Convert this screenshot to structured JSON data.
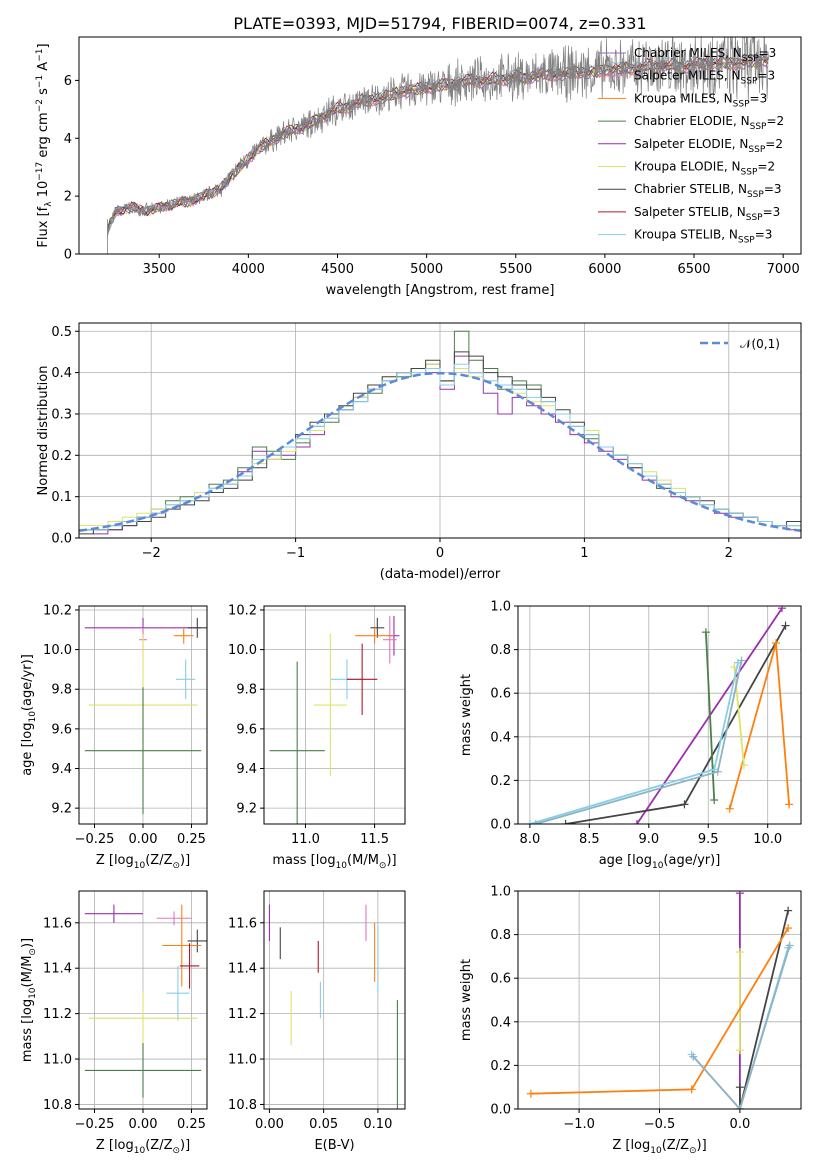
{
  "figure": {
    "title": "PLATE=0393, MJD=51794, FIBERID=0074, z=0.331"
  },
  "chart_data": [
    {
      "id": "spectrum",
      "type": "line",
      "title": "PLATE=0393, MJD=51794, FIBERID=0074, z=0.331",
      "xlabel": "wavelength [Angstrom, rest frame]",
      "ylabel": "Flux [f_λ 10^-17 erg cm^-2 s^-1 A^-1]",
      "xlim": [
        3050,
        7100
      ],
      "ylim": [
        0,
        7.5
      ],
      "xticks": [
        3500,
        4000,
        4500,
        5000,
        5500,
        6000,
        6500,
        7000
      ],
      "yticks": [
        0,
        2,
        4,
        6
      ],
      "grid": false,
      "legend_position": "top-right",
      "data_color": "#808080",
      "data_start_x": 3210,
      "data_end_x": 6920,
      "data_points": [
        [
          3210,
          0.8
        ],
        [
          3260,
          1.5
        ],
        [
          3350,
          1.6
        ],
        [
          3450,
          1.5
        ],
        [
          3550,
          1.7
        ],
        [
          3650,
          1.8
        ],
        [
          3750,
          2.0
        ],
        [
          3850,
          2.3
        ],
        [
          3950,
          3.0
        ],
        [
          4050,
          3.6
        ],
        [
          4150,
          4.0
        ],
        [
          4250,
          4.3
        ],
        [
          4350,
          4.5
        ],
        [
          4450,
          4.9
        ],
        [
          4550,
          5.1
        ],
        [
          4650,
          5.3
        ],
        [
          4750,
          5.4
        ],
        [
          4850,
          5.6
        ],
        [
          4950,
          5.7
        ],
        [
          5050,
          5.8
        ],
        [
          5150,
          5.9
        ],
        [
          5250,
          6.0
        ],
        [
          5350,
          6.0
        ],
        [
          5450,
          6.1
        ],
        [
          5550,
          6.1
        ],
        [
          5650,
          6.2
        ],
        [
          5750,
          6.2
        ],
        [
          5850,
          6.3
        ],
        [
          5950,
          6.3
        ],
        [
          6050,
          6.4
        ],
        [
          6150,
          6.4
        ],
        [
          6250,
          6.5
        ],
        [
          6350,
          6.5
        ],
        [
          6450,
          6.5
        ],
        [
          6550,
          6.6
        ],
        [
          6650,
          6.6
        ],
        [
          6750,
          6.6
        ],
        [
          6850,
          6.7
        ],
        [
          6920,
          6.7
        ]
      ],
      "models": [
        {
          "name": "Chabrier MILES, N_SSP=3",
          "color": "#9467bd"
        },
        {
          "name": "Salpeter MILES, N_SSP=3",
          "color": "#e377c2"
        },
        {
          "name": "Kroupa MILES, N_SSP=3",
          "color": "#ff7f0e"
        },
        {
          "name": "Chabrier ELODIE, N_SSP=2",
          "color": "#4a7f4a"
        },
        {
          "name": "Salpeter ELODIE, N_SSP=2",
          "color": "#9b2fae"
        },
        {
          "name": "Kroupa ELODIE, N_SSP=2",
          "color": "#dde26a"
        },
        {
          "name": "Chabrier STELIB, N_SSP=3",
          "color": "#444444"
        },
        {
          "name": "Salpeter STELIB, N_SSP=3",
          "color": "#b2182b"
        },
        {
          "name": "Kroupa STELIB, N_SSP=3",
          "color": "#87ceeb"
        }
      ]
    },
    {
      "id": "residuals",
      "type": "line",
      "xlabel": "(data-model)/error",
      "ylabel": "Normed distribution",
      "xlim": [
        -2.5,
        2.5
      ],
      "ylim": [
        0,
        0.52
      ],
      "xticks": [
        -2,
        -1,
        0,
        1,
        2
      ],
      "yticks": [
        0.0,
        0.1,
        0.2,
        0.3,
        0.4,
        0.5
      ],
      "grid": true,
      "legend_position": "top-right",
      "reference": {
        "name": "𝒩(0,1)",
        "color": "#5b8ad6",
        "mean": 0,
        "sigma": 1
      },
      "hist_bins": {
        "start": -2.5,
        "width": 0.1,
        "count": 50
      },
      "histograms": [
        {
          "color": "#9b2fae",
          "values": [
            0.02,
            0.01,
            0.02,
            0.03,
            0.05,
            0.06,
            0.08,
            0.09,
            0.1,
            0.12,
            0.13,
            0.16,
            0.21,
            0.19,
            0.2,
            0.22,
            0.25,
            0.29,
            0.31,
            0.34,
            0.36,
            0.38,
            0.4,
            0.41,
            0.4,
            0.36,
            0.44,
            0.4,
            0.35,
            0.3,
            0.34,
            0.32,
            0.3,
            0.28,
            0.25,
            0.23,
            0.21,
            0.19,
            0.17,
            0.14,
            0.12,
            0.1,
            0.09,
            0.08,
            0.06,
            0.05,
            0.05,
            0.04,
            0.03,
            0.02
          ]
        },
        {
          "color": "#4a7f4a",
          "values": [
            0.02,
            0.02,
            0.03,
            0.04,
            0.05,
            0.07,
            0.09,
            0.1,
            0.11,
            0.13,
            0.14,
            0.17,
            0.22,
            0.21,
            0.19,
            0.23,
            0.27,
            0.28,
            0.31,
            0.33,
            0.35,
            0.38,
            0.39,
            0.41,
            0.42,
            0.38,
            0.5,
            0.43,
            0.41,
            0.36,
            0.38,
            0.37,
            0.33,
            0.3,
            0.27,
            0.24,
            0.22,
            0.2,
            0.18,
            0.15,
            0.12,
            0.11,
            0.1,
            0.08,
            0.07,
            0.06,
            0.05,
            0.04,
            0.03,
            0.03
          ]
        },
        {
          "color": "#dde26a",
          "values": [
            0.03,
            0.03,
            0.04,
            0.05,
            0.06,
            0.07,
            0.08,
            0.09,
            0.11,
            0.12,
            0.13,
            0.14,
            0.18,
            0.19,
            0.21,
            0.24,
            0.26,
            0.29,
            0.32,
            0.34,
            0.37,
            0.39,
            0.4,
            0.41,
            0.42,
            0.37,
            0.41,
            0.39,
            0.38,
            0.37,
            0.35,
            0.33,
            0.32,
            0.3,
            0.28,
            0.26,
            0.22,
            0.2,
            0.18,
            0.16,
            0.14,
            0.12,
            0.1,
            0.08,
            0.07,
            0.06,
            0.05,
            0.04,
            0.03,
            0.03
          ]
        },
        {
          "color": "#444444",
          "values": [
            0.01,
            0.02,
            0.02,
            0.03,
            0.04,
            0.05,
            0.07,
            0.08,
            0.09,
            0.11,
            0.12,
            0.14,
            0.17,
            0.2,
            0.22,
            0.25,
            0.28,
            0.3,
            0.32,
            0.35,
            0.37,
            0.39,
            0.4,
            0.41,
            0.43,
            0.38,
            0.45,
            0.44,
            0.4,
            0.39,
            0.37,
            0.36,
            0.34,
            0.31,
            0.28,
            0.25,
            0.22,
            0.2,
            0.17,
            0.15,
            0.13,
            0.11,
            0.1,
            0.09,
            0.07,
            0.06,
            0.05,
            0.04,
            0.03,
            0.04
          ]
        },
        {
          "color": "#87ceeb",
          "values": [
            0.02,
            0.02,
            0.03,
            0.04,
            0.05,
            0.06,
            0.08,
            0.09,
            0.1,
            0.12,
            0.13,
            0.15,
            0.19,
            0.2,
            0.22,
            0.24,
            0.27,
            0.29,
            0.31,
            0.33,
            0.36,
            0.38,
            0.4,
            0.4,
            0.41,
            0.37,
            0.42,
            0.4,
            0.38,
            0.37,
            0.36,
            0.34,
            0.33,
            0.3,
            0.27,
            0.25,
            0.22,
            0.2,
            0.18,
            0.15,
            0.13,
            0.11,
            0.1,
            0.08,
            0.07,
            0.06,
            0.05,
            0.04,
            0.03,
            0.03
          ]
        }
      ]
    },
    {
      "id": "age-vs-Z",
      "type": "scatter",
      "xlabel": "Z [log10(Z/Z⊙)]",
      "ylabel": "age  [log10(age/yr)]",
      "xlim": [
        -0.33,
        0.33
      ],
      "ylim": [
        9.12,
        10.22
      ],
      "xticks": [
        -0.25,
        0.0,
        0.25
      ],
      "yticks": [
        9.2,
        9.4,
        9.6,
        9.8,
        10.0,
        10.2
      ],
      "grid": true,
      "points": [
        {
          "x": 0.0,
          "y": 10.11,
          "xerr": 0.3,
          "yerr": 0.05,
          "color": "#9b2fae"
        },
        {
          "x": 0.28,
          "y": 10.11,
          "xerr": 0.05,
          "yerr": 0.05,
          "color": "#444444"
        },
        {
          "x": 0.21,
          "y": 10.07,
          "xerr": 0.05,
          "yerr": 0.04,
          "color": "#ff7f0e"
        },
        {
          "x": 0.0,
          "y": 10.05,
          "xerr": 0.02,
          "yerr": 0.06,
          "color": "#e377c2"
        },
        {
          "x": 0.22,
          "y": 9.85,
          "xerr": 0.05,
          "yerr": 0.1,
          "color": "#87ceeb"
        },
        {
          "x": 0.0,
          "y": 9.72,
          "xerr": 0.28,
          "yerr": 0.36,
          "color": "#dde26a"
        },
        {
          "x": 0.0,
          "y": 9.49,
          "xerr": 0.3,
          "yerr": 0.32,
          "color": "#4a7f4a"
        }
      ]
    },
    {
      "id": "age-vs-mass",
      "type": "scatter",
      "xlabel": "mass [log10(M/M⊙)]",
      "ylabel": "",
      "xlim": [
        10.7,
        11.72
      ],
      "ylim": [
        9.12,
        10.22
      ],
      "xticks": [
        11.0,
        11.5
      ],
      "yticks": [
        9.2,
        9.4,
        9.6,
        9.8,
        10.0,
        10.2
      ],
      "grid": true,
      "points": [
        {
          "x": 11.64,
          "y": 10.07,
          "xerr": 0.04,
          "yerr": 0.1,
          "color": "#9b2fae"
        },
        {
          "x": 11.52,
          "y": 10.11,
          "xerr": 0.05,
          "yerr": 0.05,
          "color": "#444444"
        },
        {
          "x": 11.5,
          "y": 10.07,
          "xerr": 0.14,
          "yerr": 0.04,
          "color": "#ff7f0e"
        },
        {
          "x": 11.61,
          "y": 10.05,
          "xerr": 0.05,
          "yerr": 0.12,
          "color": "#e377c2"
        },
        {
          "x": 11.3,
          "y": 9.85,
          "xerr": 0.12,
          "yerr": 0.1,
          "color": "#87ceeb"
        },
        {
          "x": 11.41,
          "y": 9.85,
          "xerr": 0.11,
          "yerr": 0.18,
          "color": "#b2182b"
        },
        {
          "x": 11.18,
          "y": 9.72,
          "xerr": 0.12,
          "yerr": 0.36,
          "color": "#dde26a"
        },
        {
          "x": 10.94,
          "y": 9.49,
          "xerr": 0.2,
          "yerr": 0.45,
          "color": "#4a7f4a"
        }
      ]
    },
    {
      "id": "weight-vs-age",
      "type": "line",
      "xlabel": "age  [log10(age/yr)]",
      "ylabel": "mass weight",
      "xlim": [
        7.9,
        10.28
      ],
      "ylim": [
        0,
        1.0
      ],
      "xticks": [
        8.0,
        8.5,
        9.0,
        9.5,
        10.0
      ],
      "yticks": [
        0.0,
        0.2,
        0.4,
        0.6,
        0.8,
        1.0
      ],
      "grid": true,
      "series": [
        {
          "color": "#9b2fae",
          "x": [
            8.9,
            10.12
          ],
          "y": [
            0.0,
            0.99
          ]
        },
        {
          "color": "#444444",
          "x": [
            8.3,
            9.3,
            10.15
          ],
          "y": [
            0.0,
            0.09,
            0.91
          ]
        },
        {
          "color": "#ff7f0e",
          "x": [
            9.68,
            10.07,
            10.18
          ],
          "y": [
            0.07,
            0.83,
            0.09
          ]
        },
        {
          "color": "#4a7f4a",
          "x": [
            9.48,
            9.55
          ],
          "y": [
            0.88,
            0.11
          ]
        },
        {
          "color": "#dde26a",
          "x": [
            9.72,
            9.8
          ],
          "y": [
            0.72,
            0.27
          ]
        },
        {
          "color": "#87ceeb",
          "x": [
            8.0,
            9.55,
            9.75
          ],
          "y": [
            0.0,
            0.25,
            0.74
          ]
        },
        {
          "color": "#8fb3c0",
          "x": [
            8.05,
            9.58,
            9.78
          ],
          "y": [
            0.0,
            0.24,
            0.75
          ]
        }
      ]
    },
    {
      "id": "mass-vs-Z",
      "type": "scatter",
      "xlabel": "Z [log10(Z/Z⊙)]",
      "ylabel": "mass [log10(M/M⊙)]",
      "xlim": [
        -0.33,
        0.33
      ],
      "ylim": [
        10.78,
        11.74
      ],
      "xticks": [
        -0.25,
        0.0,
        0.25
      ],
      "yticks": [
        10.8,
        11.0,
        11.2,
        11.4,
        11.6
      ],
      "grid": true,
      "points": [
        {
          "x": -0.15,
          "y": 11.64,
          "xerr": 0.15,
          "yerr": 0.04,
          "color": "#9b2fae"
        },
        {
          "x": 0.16,
          "y": 11.62,
          "xerr": 0.09,
          "yerr": 0.03,
          "color": "#e377c2"
        },
        {
          "x": 0.28,
          "y": 11.52,
          "xerr": 0.05,
          "yerr": 0.05,
          "color": "#444444"
        },
        {
          "x": 0.2,
          "y": 11.5,
          "xerr": 0.1,
          "yerr": 0.18,
          "color": "#ff7f0e"
        },
        {
          "x": 0.24,
          "y": 11.41,
          "xerr": 0.05,
          "yerr": 0.1,
          "color": "#b2182b"
        },
        {
          "x": 0.18,
          "y": 11.29,
          "xerr": 0.06,
          "yerr": 0.12,
          "color": "#87ceeb"
        },
        {
          "x": 0.0,
          "y": 11.18,
          "xerr": 0.28,
          "yerr": 0.12,
          "color": "#dde26a"
        },
        {
          "x": 0.0,
          "y": 10.95,
          "xerr": 0.3,
          "yerr": 0.12,
          "color": "#4a7f4a"
        }
      ]
    },
    {
      "id": "mass-vs-ebv",
      "type": "scatter",
      "xlabel": "E(B-V)",
      "ylabel": "",
      "xlim": [
        -0.005,
        0.125
      ],
      "ylim": [
        10.78,
        11.74
      ],
      "xticks": [
        0.0,
        0.05,
        0.1
      ],
      "yticks": [
        10.8,
        11.0,
        11.2,
        11.4,
        11.6
      ],
      "grid": true,
      "points": [
        {
          "x": 0.0,
          "y": 11.6,
          "xerr": 0,
          "yerr": 0.08,
          "color": "#9b2fae"
        },
        {
          "x": 0.01,
          "y": 11.51,
          "xerr": 0,
          "yerr": 0.07,
          "color": "#444444"
        },
        {
          "x": 0.02,
          "y": 11.18,
          "xerr": 0,
          "yerr": 0.12,
          "color": "#dde26a"
        },
        {
          "x": 0.045,
          "y": 11.45,
          "xerr": 0,
          "yerr": 0.07,
          "color": "#b2182b"
        },
        {
          "x": 0.047,
          "y": 11.26,
          "xerr": 0,
          "yerr": 0.08,
          "color": "#87ceeb"
        },
        {
          "x": 0.089,
          "y": 11.6,
          "xerr": 0,
          "yerr": 0.08,
          "color": "#e377c2"
        },
        {
          "x": 0.097,
          "y": 11.47,
          "xerr": 0,
          "yerr": 0.13,
          "color": "#ff7f0e"
        },
        {
          "x": 0.1,
          "y": 11.44,
          "xerr": 0,
          "yerr": 0.15,
          "color": "#87ceeb"
        },
        {
          "x": 0.118,
          "y": 11.02,
          "xerr": 0,
          "yerr": 0.24,
          "color": "#4a7f4a"
        }
      ]
    },
    {
      "id": "weight-vs-Z",
      "type": "line",
      "xlabel": "Z [log10(Z/Z⊙)]",
      "ylabel": "mass weight",
      "xlim": [
        -1.38,
        0.38
      ],
      "ylim": [
        0,
        1.0
      ],
      "xticks": [
        -1.0,
        -0.5,
        0.0
      ],
      "yticks": [
        0.0,
        0.2,
        0.4,
        0.6,
        0.8,
        1.0
      ],
      "grid": true,
      "series": [
        {
          "color": "#9b2fae",
          "x": [
            0.0,
            0.0
          ],
          "y": [
            0.0,
            0.99
          ]
        },
        {
          "color": "#dde26a",
          "x": [
            0.0,
            0.0
          ],
          "y": [
            0.27,
            0.72
          ]
        },
        {
          "color": "#444444",
          "x": [
            0.0,
            0.0,
            0.3
          ],
          "y": [
            0.1,
            0.0,
            0.91
          ]
        },
        {
          "color": "#ff7f0e",
          "x": [
            -1.3,
            -0.3,
            0.3
          ],
          "y": [
            0.07,
            0.09,
            0.83
          ]
        },
        {
          "color": "#87ceeb",
          "x": [
            -0.3,
            0.0,
            0.3
          ],
          "y": [
            0.25,
            0.0,
            0.74
          ]
        },
        {
          "color": "#8fb3c0",
          "x": [
            -0.29,
            0.0,
            0.31
          ],
          "y": [
            0.24,
            0.0,
            0.75
          ]
        }
      ]
    }
  ]
}
